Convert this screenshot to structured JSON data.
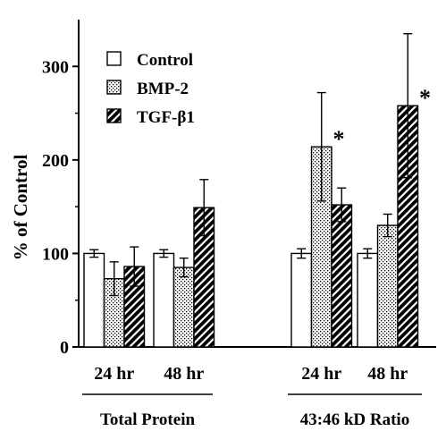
{
  "chart_data": {
    "type": "bar",
    "title": "",
    "ylabel": "% of Control",
    "ylim": [
      0,
      350
    ],
    "yticks": [
      0,
      100,
      200,
      300
    ],
    "groups": [
      {
        "label": "Total Protein",
        "categories": [
          "24 hr",
          "48 hr"
        ]
      },
      {
        "label": "43:46 kD Ratio",
        "categories": [
          "24 hr",
          "48 hr"
        ]
      }
    ],
    "categories": [
      "24 hr",
      "48 hr",
      "24 hr",
      "48 hr"
    ],
    "series": [
      {
        "name": "Control",
        "pattern": "open",
        "values": [
          100,
          100,
          100,
          100
        ],
        "errors": [
          4,
          4,
          5,
          5
        ]
      },
      {
        "name": "BMP-2",
        "pattern": "dotted",
        "values": [
          73,
          85,
          214,
          130
        ],
        "errors": [
          18,
          10,
          58,
          12
        ]
      },
      {
        "name": "TGF-β1",
        "pattern": "hatched",
        "values": [
          86,
          149,
          152,
          258
        ],
        "errors": [
          21,
          30,
          18,
          77
        ]
      }
    ],
    "annotations": [
      {
        "text": "*",
        "category_index": 2,
        "series_index": 1
      },
      {
        "text": "*",
        "category_index": 3,
        "series_index": 2
      }
    ],
    "legend_position": "top-left",
    "grid": false
  }
}
